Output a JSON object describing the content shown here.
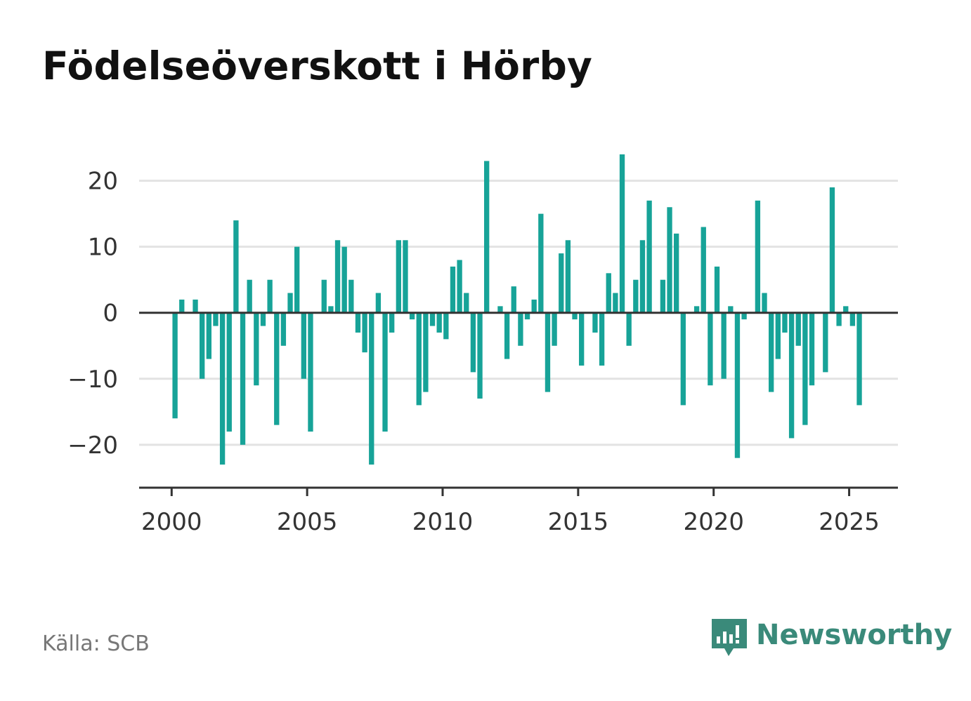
{
  "title": "Födelseöverskott i Hörby",
  "source": "Källa: SCB",
  "brand": "Newsworthy",
  "colors": {
    "bar": "#17a398",
    "grid": "#e3e3e3",
    "zero_line": "#333333",
    "axis": "#333333",
    "brand": "#3a8a7a"
  },
  "chart_data": {
    "type": "bar",
    "title": "Födelseöverskott i Hörby",
    "xlabel": "",
    "ylabel": "",
    "xlim": [
      1998.8,
      2026.8
    ],
    "ylim": [
      -26.5,
      24
    ],
    "x_ticks": [
      2000,
      2005,
      2010,
      2015,
      2020,
      2025
    ],
    "x_tick_labels": [
      "2000",
      "2005",
      "2010",
      "2015",
      "2020",
      "2025"
    ],
    "y_ticks": [
      20,
      10,
      0,
      -10,
      -20
    ],
    "y_tick_labels": [
      "20",
      "10",
      "0",
      "−10",
      "−20"
    ],
    "grid": true,
    "bar_width_years": 0.19,
    "x": [
      2000.125,
      2000.375,
      2000.625,
      2000.875,
      2001.125,
      2001.375,
      2001.625,
      2001.875,
      2002.125,
      2002.375,
      2002.625,
      2002.875,
      2003.125,
      2003.375,
      2003.625,
      2003.875,
      2004.125,
      2004.375,
      2004.625,
      2004.875,
      2005.125,
      2005.375,
      2005.625,
      2005.875,
      2006.125,
      2006.375,
      2006.625,
      2006.875,
      2007.125,
      2007.375,
      2007.625,
      2007.875,
      2008.125,
      2008.375,
      2008.625,
      2008.875,
      2009.125,
      2009.375,
      2009.625,
      2009.875,
      2010.125,
      2010.375,
      2010.625,
      2010.875,
      2011.125,
      2011.375,
      2011.625,
      2011.875,
      2012.125,
      2012.375,
      2012.625,
      2012.875,
      2013.125,
      2013.375,
      2013.625,
      2013.875,
      2014.125,
      2014.375,
      2014.625,
      2014.875,
      2015.125,
      2015.375,
      2015.625,
      2015.875,
      2016.125,
      2016.375,
      2016.625,
      2016.875,
      2017.125,
      2017.375,
      2017.625,
      2017.875,
      2018.125,
      2018.375,
      2018.625,
      2018.875,
      2019.125,
      2019.375,
      2019.625,
      2019.875,
      2020.125,
      2020.375,
      2020.625,
      2020.875,
      2021.125,
      2021.375,
      2021.625,
      2021.875,
      2022.125,
      2022.375,
      2022.625,
      2022.875,
      2023.125,
      2023.375,
      2023.625,
      2023.875,
      2024.125,
      2024.375,
      2024.625,
      2024.875,
      2025.125,
      2025.375
    ],
    "values": [
      -16,
      2,
      0,
      2,
      -10,
      -7,
      -2,
      -23,
      -18,
      14,
      -20,
      5,
      -11,
      -2,
      5,
      -17,
      -5,
      3,
      10,
      -10,
      -18,
      0,
      5,
      1,
      11,
      10,
      5,
      -3,
      -6,
      -23,
      3,
      -18,
      -3,
      11,
      11,
      -1,
      -14,
      -12,
      -2,
      -3,
      -4,
      7,
      8,
      3,
      -9,
      -13,
      23,
      0,
      1,
      -7,
      4,
      -5,
      -1,
      2,
      15,
      -12,
      -5,
      9,
      11,
      -1,
      -8,
      0,
      -3,
      -8,
      6,
      3,
      24,
      -5,
      5,
      11,
      17,
      0,
      5,
      16,
      12,
      -14,
      0,
      1,
      13,
      -11,
      7,
      -10,
      1,
      -22,
      -1,
      0,
      17,
      3,
      -12,
      -7,
      -3,
      -19,
      -5,
      -17,
      -11,
      0,
      -9,
      19,
      -2,
      1,
      -2,
      -14
    ]
  }
}
